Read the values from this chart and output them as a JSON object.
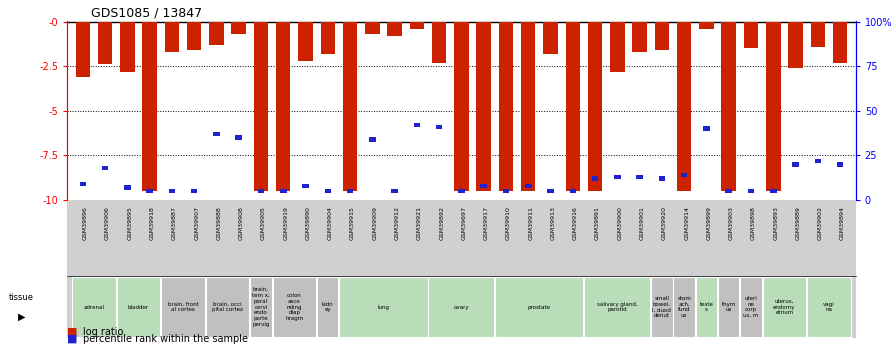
{
  "title": "GDS1085 / 13847",
  "gsm_ids": [
    "GSM39896",
    "GSM39906",
    "GSM39895",
    "GSM39918",
    "GSM39887",
    "GSM39907",
    "GSM39888",
    "GSM39908",
    "GSM39905",
    "GSM39919",
    "GSM39890",
    "GSM39904",
    "GSM39915",
    "GSM39909",
    "GSM39912",
    "GSM39921",
    "GSM39892",
    "GSM39697",
    "GSM39917",
    "GSM39910",
    "GSM39911",
    "GSM39913",
    "GSM39916",
    "GSM39891",
    "GSM39900",
    "GSM39901",
    "GSM39920",
    "GSM39914",
    "GSM39899",
    "GSM39903",
    "GSM39898",
    "GSM39893",
    "GSM39889",
    "GSM39902",
    "GSM39894"
  ],
  "log_ratio": [
    -3.1,
    -2.4,
    -2.8,
    -9.5,
    -1.7,
    -1.6,
    -1.3,
    -0.7,
    -9.5,
    -9.5,
    -2.2,
    -1.8,
    -9.5,
    -0.7,
    -0.8,
    -0.4,
    -2.3,
    -9.5,
    -9.5,
    -9.5,
    -9.5,
    -1.8,
    -9.5,
    -9.5,
    -2.8,
    -1.7,
    -1.6,
    -9.5,
    -0.4,
    -9.5,
    -1.5,
    -9.5,
    -2.6,
    -1.4,
    -2.3
  ],
  "percentile_rank_val": [
    -9.1,
    -8.2,
    -9.3,
    -9.5,
    -9.5,
    -9.5,
    -6.3,
    -6.5,
    -9.5,
    -9.5,
    -9.2,
    -9.5,
    -9.5,
    -6.6,
    -9.5,
    -5.8,
    -5.9,
    -9.5,
    -9.2,
    -9.5,
    -9.2,
    -9.5,
    -9.5,
    -8.8,
    -8.7,
    -8.7,
    -8.8,
    -8.6,
    -6.0,
    -9.5,
    -9.5,
    -9.5,
    -8.0,
    -7.8,
    -8.0
  ],
  "tissue_groups": [
    {
      "label": "adrenal",
      "start": 0,
      "end": 2,
      "color": "#b8ddb8"
    },
    {
      "label": "bladder",
      "start": 2,
      "end": 4,
      "color": "#b8ddb8"
    },
    {
      "label": "brain, front\nal cortex",
      "start": 4,
      "end": 6,
      "color": "#c0c0c0"
    },
    {
      "label": "brain, occi\npital cortex",
      "start": 6,
      "end": 8,
      "color": "#c0c0c0"
    },
    {
      "label": "brain,\ntem x,\nporal\ncervi\nendo\nporte\npervig",
      "start": 8,
      "end": 9,
      "color": "#c0c0c0"
    },
    {
      "label": "colon\nasce\nnding\ndiap\nhragm",
      "start": 9,
      "end": 11,
      "color": "#c0c0c0"
    },
    {
      "label": "kidn\ney",
      "start": 11,
      "end": 12,
      "color": "#c0c0c0"
    },
    {
      "label": "lung",
      "start": 12,
      "end": 16,
      "color": "#b8ddb8"
    },
    {
      "label": "ovary",
      "start": 16,
      "end": 19,
      "color": "#b8ddb8"
    },
    {
      "label": "prostate",
      "start": 19,
      "end": 23,
      "color": "#b8ddb8"
    },
    {
      "label": "salivary gland,\nparotid",
      "start": 23,
      "end": 26,
      "color": "#b8ddb8"
    },
    {
      "label": "small\nbowel,\nl, duod\ndenut",
      "start": 26,
      "end": 27,
      "color": "#c0c0c0"
    },
    {
      "label": "stom\nach,\nfund\nus",
      "start": 27,
      "end": 28,
      "color": "#c0c0c0"
    },
    {
      "label": "teste\ns",
      "start": 28,
      "end": 29,
      "color": "#b8ddb8"
    },
    {
      "label": "thym\nus",
      "start": 29,
      "end": 30,
      "color": "#c0c0c0"
    },
    {
      "label": "uteri\nne\ncorp\nus, m",
      "start": 30,
      "end": 31,
      "color": "#c0c0c0"
    },
    {
      "label": "uterus,\nendomy\netrium",
      "start": 31,
      "end": 33,
      "color": "#b8ddb8"
    },
    {
      "label": "vagi\nna",
      "start": 33,
      "end": 35,
      "color": "#b8ddb8"
    }
  ],
  "ylim_min": -10,
  "ylim_max": 0,
  "bar_color": "#cc2200",
  "blue_color": "#2222cc",
  "bg_color": "#ffffff",
  "gsm_bg": "#d0d0d0",
  "tissue_bg": "#d0d0d0"
}
